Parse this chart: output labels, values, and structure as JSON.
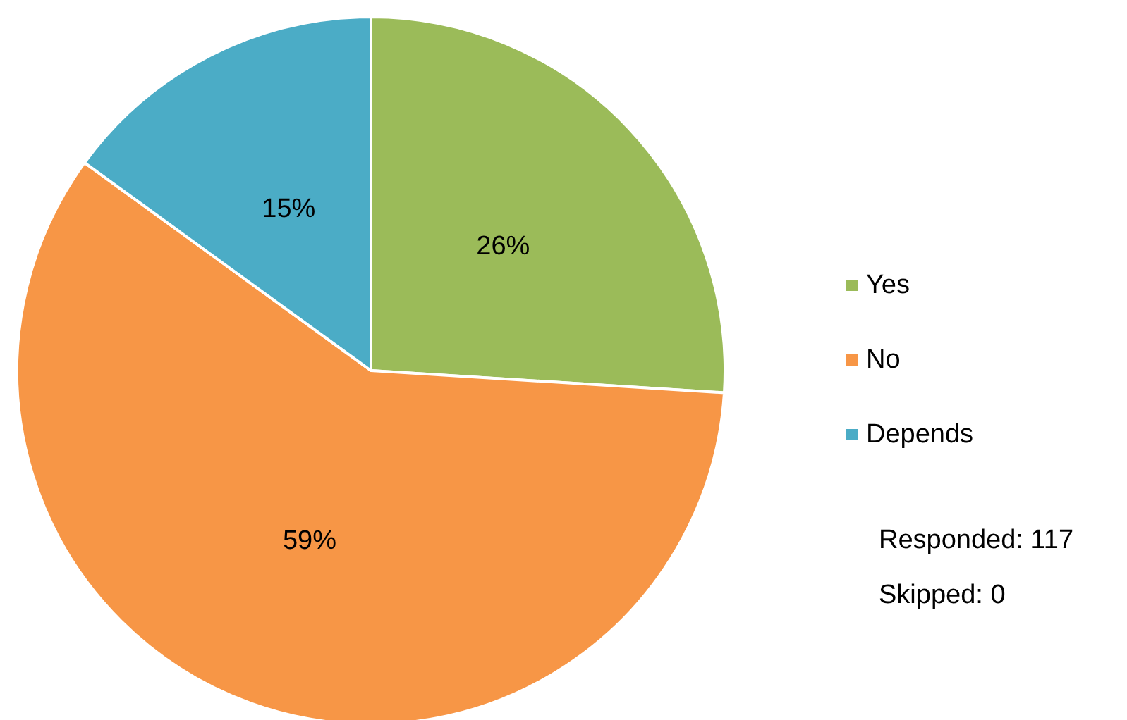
{
  "chart_data": {
    "type": "pie",
    "categories": [
      "Yes",
      "No",
      "Depends"
    ],
    "values": [
      26,
      59,
      15
    ],
    "colors": [
      "#9bbb59",
      "#f79646",
      "#4bacc6"
    ],
    "value_labels": [
      "26%",
      "59%",
      "15%"
    ],
    "legend": "right",
    "annotations": [
      "Responded: 117",
      "Skipped: 0"
    ]
  }
}
